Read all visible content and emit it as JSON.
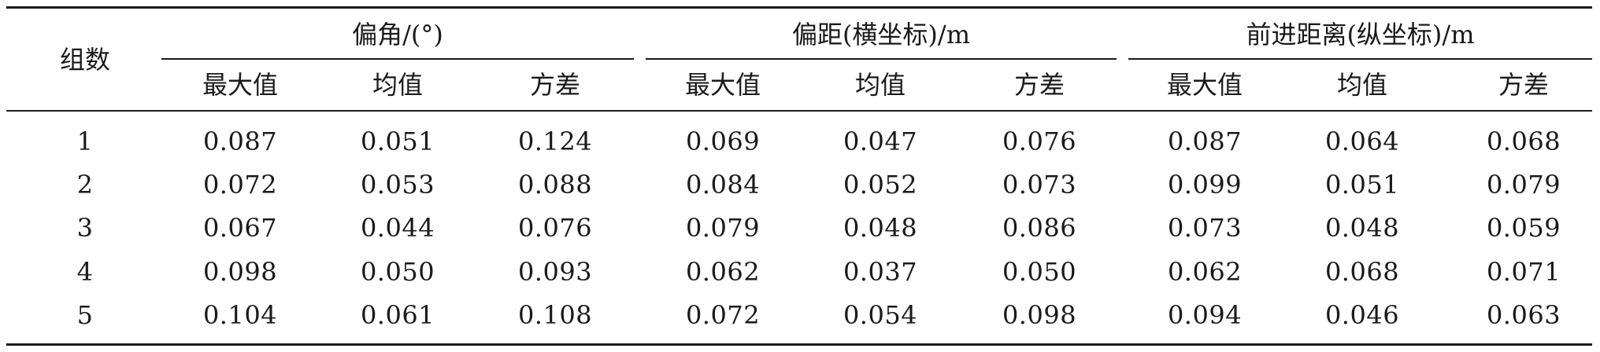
{
  "table": {
    "row_header": "组数",
    "groups": [
      {
        "label": "偏角/(°)",
        "subheaders": [
          "最大值",
          "均值",
          "方差"
        ]
      },
      {
        "label": "偏距(横坐标)/m",
        "subheaders": [
          "最大值",
          "均值",
          "方差"
        ]
      },
      {
        "label": "前进距离(纵坐标)/m",
        "subheaders": [
          "最大值",
          "均值",
          "方差"
        ]
      }
    ],
    "rows": [
      {
        "id": "1",
        "values": [
          "0.087",
          "0.051",
          "0.124",
          "0.069",
          "0.047",
          "0.076",
          "0.087",
          "0.064",
          "0.068"
        ]
      },
      {
        "id": "2",
        "values": [
          "0.072",
          "0.053",
          "0.088",
          "0.084",
          "0.052",
          "0.073",
          "0.099",
          "0.051",
          "0.079"
        ]
      },
      {
        "id": "3",
        "values": [
          "0.067",
          "0.044",
          "0.076",
          "0.079",
          "0.048",
          "0.086",
          "0.073",
          "0.048",
          "0.059"
        ]
      },
      {
        "id": "4",
        "values": [
          "0.098",
          "0.050",
          "0.093",
          "0.062",
          "0.037",
          "0.050",
          "0.062",
          "0.068",
          "0.071"
        ]
      },
      {
        "id": "5",
        "values": [
          "0.104",
          "0.061",
          "0.108",
          "0.072",
          "0.054",
          "0.098",
          "0.094",
          "0.046",
          "0.063"
        ]
      }
    ]
  }
}
